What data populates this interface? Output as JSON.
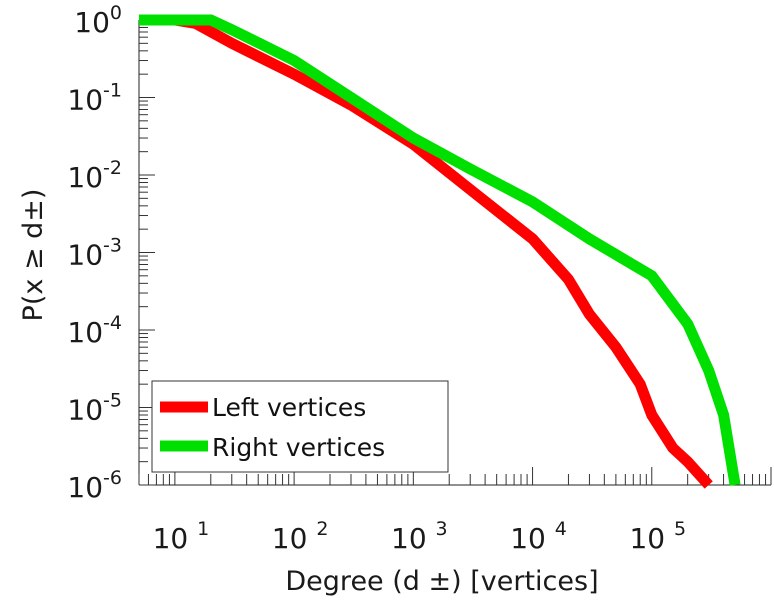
{
  "chart_data": {
    "type": "line",
    "title": "",
    "xlabel": "Degree (d ±) [vertices]",
    "ylabel": "P(x ≥ d±)",
    "x_scale": "log",
    "y_scale": "log",
    "xlim": [
      5,
      1000000
    ],
    "ylim": [
      1e-06,
      1
    ],
    "x_ticks": [
      {
        "base": "10",
        "exp": "1",
        "value": 10
      },
      {
        "base": "10",
        "exp": "2",
        "value": 100
      },
      {
        "base": "10",
        "exp": "3",
        "value": 1000
      },
      {
        "base": "10",
        "exp": "4",
        "value": 10000
      },
      {
        "base": "10",
        "exp": "5",
        "value": 100000
      }
    ],
    "y_ticks": [
      {
        "base": "10",
        "exp": "0",
        "value": 1
      },
      {
        "base": "10",
        "exp": "-1",
        "value": 0.1
      },
      {
        "base": "10",
        "exp": "-2",
        "value": 0.01
      },
      {
        "base": "10",
        "exp": "-3",
        "value": 0.001
      },
      {
        "base": "10",
        "exp": "-4",
        "value": 0.0001
      },
      {
        "base": "10",
        "exp": "-5",
        "value": 1e-05
      },
      {
        "base": "10",
        "exp": "-6",
        "value": 1e-06
      }
    ],
    "grid": false,
    "legend_position": "bottom-left",
    "series": [
      {
        "name": "Left vertices",
        "color": "#ff0000",
        "points": [
          [
            5,
            1
          ],
          [
            10,
            1
          ],
          [
            15,
            0.9
          ],
          [
            30,
            0.5
          ],
          [
            100,
            0.2
          ],
          [
            300,
            0.08
          ],
          [
            1000,
            0.025
          ],
          [
            3000,
            0.0065
          ],
          [
            10000,
            0.0015
          ],
          [
            20000,
            0.00045
          ],
          [
            30000,
            0.00016
          ],
          [
            50000,
            6e-05
          ],
          [
            80000,
            2e-05
          ],
          [
            100000,
            8e-06
          ],
          [
            150000,
            3e-06
          ],
          [
            200000,
            2e-06
          ],
          [
            300000,
            1e-06
          ]
        ]
      },
      {
        "name": "Right vertices",
        "color": "#00e000",
        "points": [
          [
            5,
            1
          ],
          [
            10,
            1
          ],
          [
            20,
            1
          ],
          [
            30,
            0.75
          ],
          [
            100,
            0.3
          ],
          [
            300,
            0.1
          ],
          [
            1000,
            0.03
          ],
          [
            3000,
            0.012
          ],
          [
            10000,
            0.0045
          ],
          [
            30000,
            0.0015
          ],
          [
            100000,
            0.0005
          ],
          [
            200000,
            0.00012
          ],
          [
            300000,
            3e-05
          ],
          [
            400000,
            8e-06
          ],
          [
            500000,
            1e-06
          ]
        ]
      }
    ]
  }
}
